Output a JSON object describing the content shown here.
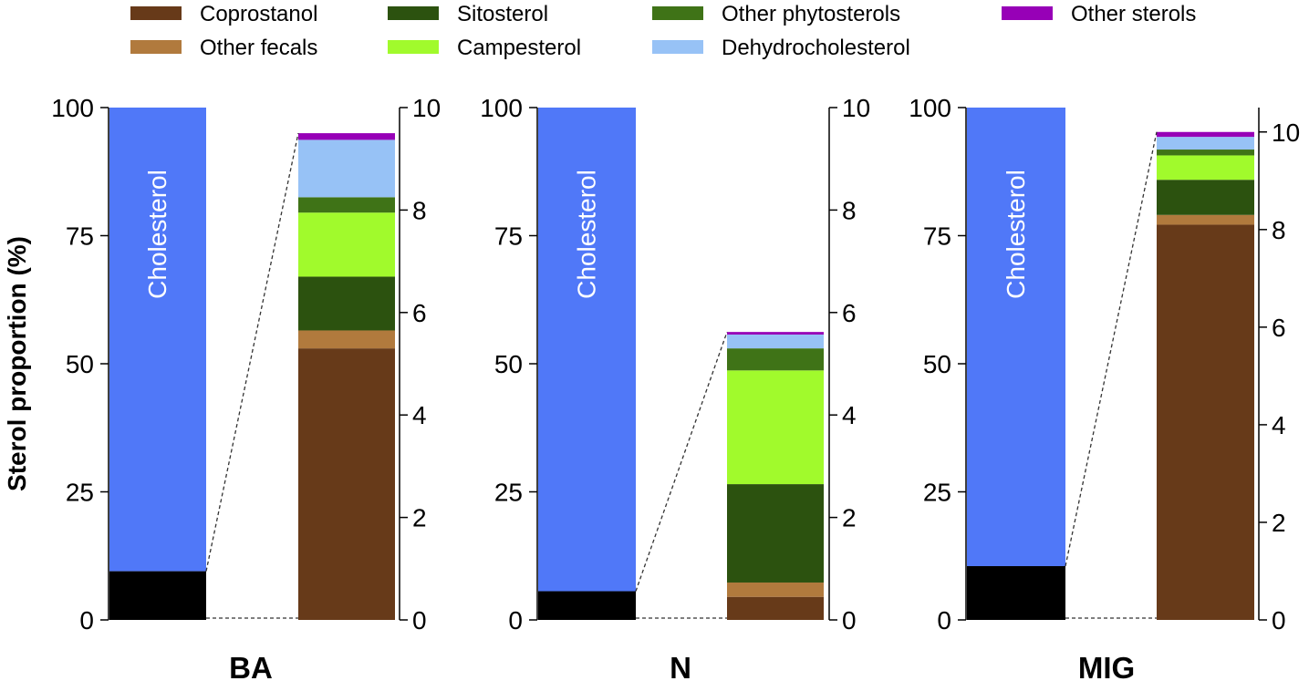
{
  "chart_data": {
    "type": "bar",
    "ylabel": "Sterol proportion (%)",
    "legend_placement": "top",
    "legend": [
      {
        "name": "Coprostanol",
        "color": "#673a19"
      },
      {
        "name": "Other fecals",
        "color": "#b17a3d"
      },
      {
        "name": "Sitosterol",
        "color": "#2c520f"
      },
      {
        "name": "Campesterol",
        "color": "#a1fa2c"
      },
      {
        "name": "Other phytosterols",
        "color": "#3f7317"
      },
      {
        "name": "Dehydrocholesterol",
        "color": "#97c2f6"
      },
      {
        "name": "Other sterols",
        "color": "#9700b7"
      }
    ],
    "cholesterol": {
      "label": "Cholesterol",
      "color": "#5078f8"
    },
    "rest_color": "#000000",
    "left_axis": {
      "ylim": [
        0,
        100
      ],
      "ticks": [
        "0",
        "25",
        "50",
        "75",
        "100"
      ]
    },
    "panels": [
      {
        "title": "BA",
        "cholesterol_percent": 90.5,
        "right_axis": {
          "ylim": [
            0,
            10
          ],
          "ticks": [
            "0",
            "2",
            "4",
            "6",
            "8",
            "10"
          ]
        },
        "stack": [
          {
            "name": "Coprostanol",
            "value": 5.3
          },
          {
            "name": "Other fecals",
            "value": 0.35
          },
          {
            "name": "Sitosterol",
            "value": 1.05
          },
          {
            "name": "Campesterol",
            "value": 1.25
          },
          {
            "name": "Other phytosterols",
            "value": 0.3
          },
          {
            "name": "Dehydrocholesterol",
            "value": 1.12
          },
          {
            "name": "Other sterols",
            "value": 0.13
          }
        ]
      },
      {
        "title": "N",
        "cholesterol_percent": 94.4,
        "right_axis": {
          "ylim": [
            0,
            10
          ],
          "ticks": [
            "0",
            "2",
            "4",
            "6",
            "8",
            "10"
          ]
        },
        "stack": [
          {
            "name": "Coprostanol",
            "value": 0.45
          },
          {
            "name": "Other fecals",
            "value": 0.28
          },
          {
            "name": "Sitosterol",
            "value": 1.92
          },
          {
            "name": "Campesterol",
            "value": 2.22
          },
          {
            "name": "Other phytosterols",
            "value": 0.43
          },
          {
            "name": "Dehydrocholesterol",
            "value": 0.27
          },
          {
            "name": "Other sterols",
            "value": 0.05
          }
        ]
      },
      {
        "title": "MIG",
        "cholesterol_percent": 89.5,
        "right_axis": {
          "ylim": [
            0,
            10.5
          ],
          "ticks": [
            "0",
            "2",
            "4",
            "6",
            "8",
            "10"
          ]
        },
        "stack": [
          {
            "name": "Coprostanol",
            "value": 8.1
          },
          {
            "name": "Other fecals",
            "value": 0.2
          },
          {
            "name": "Sitosterol",
            "value": 0.72
          },
          {
            "name": "Campesterol",
            "value": 0.5
          },
          {
            "name": "Other phytosterols",
            "value": 0.12
          },
          {
            "name": "Dehydrocholesterol",
            "value": 0.26
          },
          {
            "name": "Other sterols",
            "value": 0.1
          }
        ]
      }
    ]
  }
}
